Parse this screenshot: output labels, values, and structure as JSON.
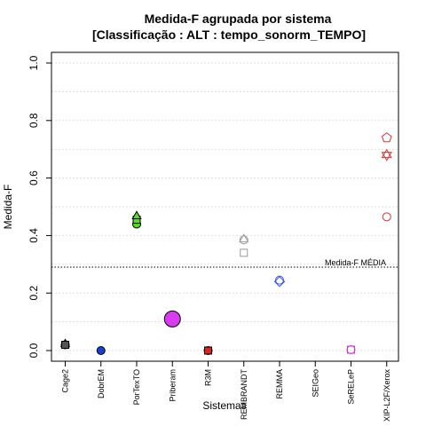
{
  "chart_data": {
    "type": "scatter",
    "title": "Medida-F agrupada por sistema",
    "subtitle": "[Classificação : ALT : tempo_sonorm_TEMPO]",
    "xlabel": "Sistemas",
    "ylabel": "Medida-F",
    "ylim": [
      0,
      1
    ],
    "yticks": [
      "0.0",
      "0.2",
      "0.4",
      "0.6",
      "0.8",
      "1.0"
    ],
    "grid": true,
    "categories": [
      "Cage2",
      "DobrEM",
      "PorTexTO",
      "Priberam",
      "R3M",
      "REMBRANDT",
      "REMMA",
      "SEIGeo",
      "SeRELeP",
      "XIP-L2F/Xerox"
    ],
    "reference_line": {
      "label": "Medida-F MÉDIA",
      "value": 0.29
    },
    "points": [
      {
        "category": "Cage2",
        "y": 0.02,
        "shape": "circle",
        "color": "#555555",
        "filled": true
      },
      {
        "category": "Cage2",
        "y": 0.025,
        "shape": "triangle",
        "color": "#555555",
        "filled": true
      },
      {
        "category": "Cage2",
        "y": 0.02,
        "shape": "square",
        "color": "#555555",
        "filled": true
      },
      {
        "category": "DobrEM",
        "y": 0.0,
        "shape": "circle",
        "color": "#1a3fd6",
        "filled": true
      },
      {
        "category": "PorTexTO",
        "y": 0.44,
        "shape": "circle",
        "color": "#55dd22",
        "filled": true
      },
      {
        "category": "PorTexTO",
        "y": 0.455,
        "shape": "square",
        "color": "#55dd22",
        "filled": true
      },
      {
        "category": "PorTexTO",
        "y": 0.47,
        "shape": "triangle",
        "color": "#55dd22",
        "filled": true
      },
      {
        "category": "Priberam",
        "y": 0.11,
        "shape": "circle-large",
        "color": "#d93cf0",
        "filled": true
      },
      {
        "category": "R3M",
        "y": 0.0,
        "shape": "circle",
        "color": "#dd2222",
        "filled": true
      },
      {
        "category": "R3M",
        "y": 0.0,
        "shape": "square",
        "color": "#dd2222",
        "filled": true
      },
      {
        "category": "REMBRANDT",
        "y": 0.39,
        "shape": "triangle",
        "color": "#999999",
        "filled": false
      },
      {
        "category": "REMBRANDT",
        "y": 0.385,
        "shape": "circle",
        "color": "#999999",
        "filled": false
      },
      {
        "category": "REMBRANDT",
        "y": 0.34,
        "shape": "square",
        "color": "#999999",
        "filled": false
      },
      {
        "category": "REMMA",
        "y": 0.245,
        "shape": "circle",
        "color": "#3355ee",
        "filled": false
      },
      {
        "category": "REMMA",
        "y": 0.24,
        "shape": "diamond",
        "color": "#3355ee",
        "filled": false
      },
      {
        "category": "SeRELeP",
        "y": 0.003,
        "shape": "circle",
        "color": "#dd33dd",
        "filled": false
      },
      {
        "category": "SeRELeP",
        "y": 0.003,
        "shape": "square",
        "color": "#dd33dd",
        "filled": false
      },
      {
        "category": "XIP-L2F/Xerox",
        "y": 0.74,
        "shape": "pentagon",
        "color": "#dd3333",
        "filled": false
      },
      {
        "category": "XIP-L2F/Xerox",
        "y": 0.68,
        "shape": "star6",
        "color": "#dd3333",
        "filled": false
      },
      {
        "category": "XIP-L2F/Xerox",
        "y": 0.465,
        "shape": "circle",
        "color": "#dd3333",
        "filled": false
      }
    ]
  }
}
